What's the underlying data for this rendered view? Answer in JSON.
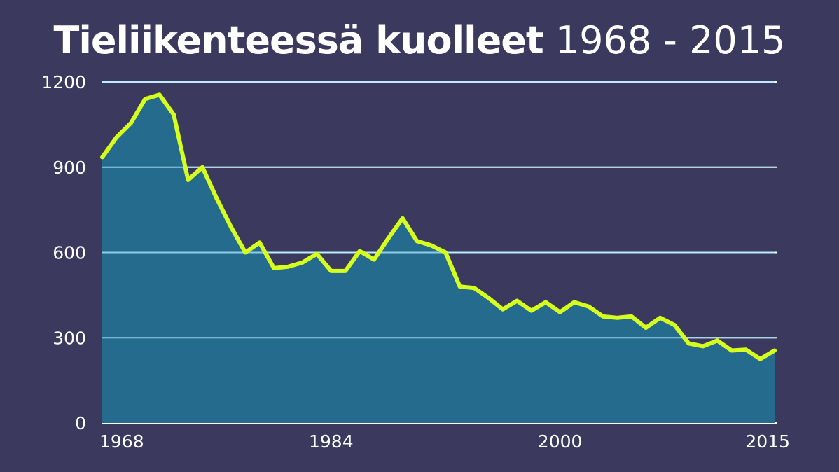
{
  "chart_data": {
    "type": "area",
    "title_bold": "Tieliikenteessä kuolleet",
    "title_light": "1968 - 2015",
    "xlabel": "",
    "ylabel": "",
    "xlim": [
      1968,
      2015
    ],
    "ylim": [
      0,
      1200
    ],
    "yticks": [
      0,
      300,
      600,
      900,
      1200
    ],
    "xticks": [
      1968,
      1984,
      2000,
      2015
    ],
    "grid": true,
    "colors": {
      "background": "#3b3a5e",
      "area": "#246b8d",
      "line": "#d7ff1d",
      "grid": "#ffffff"
    },
    "x": [
      1968,
      1969,
      1970,
      1971,
      1972,
      1973,
      1974,
      1975,
      1976,
      1977,
      1978,
      1979,
      1980,
      1981,
      1982,
      1983,
      1984,
      1985,
      1986,
      1987,
      1988,
      1989,
      1990,
      1991,
      1992,
      1993,
      1994,
      1995,
      1996,
      1997,
      1998,
      1999,
      2000,
      2001,
      2002,
      2003,
      2004,
      2005,
      2006,
      2007,
      2008,
      2009,
      2010,
      2011,
      2012,
      2013,
      2014,
      2015
    ],
    "values": [
      935,
      1005,
      1055,
      1140,
      1155,
      1085,
      855,
      900,
      790,
      690,
      600,
      635,
      545,
      550,
      565,
      595,
      535,
      535,
      605,
      575,
      650,
      720,
      640,
      625,
      600,
      480,
      475,
      440,
      400,
      430,
      395,
      425,
      390,
      425,
      410,
      375,
      370,
      375,
      335,
      370,
      345,
      280,
      270,
      290,
      255,
      258,
      225,
      255
    ]
  }
}
